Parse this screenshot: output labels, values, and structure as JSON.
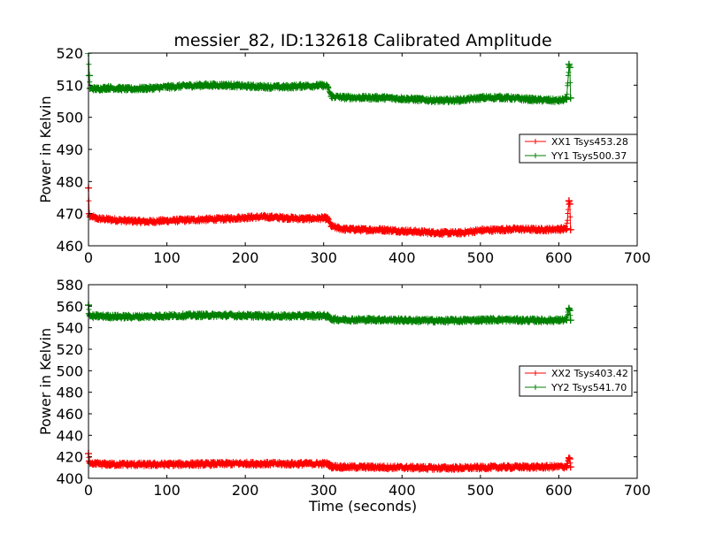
{
  "chart_data": [
    {
      "type": "line",
      "title": "messier_82, ID:132618 Calibrated Amplitude",
      "xlabel": "",
      "ylabel": "Power in Kelvin",
      "xlim": [
        0,
        700
      ],
      "ylim": [
        460,
        520
      ],
      "xticks": [
        0,
        100,
        200,
        300,
        400,
        500,
        600,
        700
      ],
      "yticks": [
        460,
        470,
        480,
        490,
        500,
        510,
        520
      ],
      "grid": false,
      "legend_position": "center-right",
      "series": [
        {
          "name": "XX1 Tsys453.28",
          "color": "#ff0000",
          "x": [
            0,
            1,
            2,
            5,
            10,
            25,
            50,
            75,
            100,
            125,
            150,
            175,
            200,
            225,
            250,
            275,
            300,
            305,
            310,
            325,
            350,
            375,
            400,
            425,
            450,
            475,
            500,
            525,
            550,
            575,
            600,
            610,
            613,
            614,
            615
          ],
          "y": [
            478,
            470,
            469,
            469,
            468.5,
            468.2,
            467.8,
            467.5,
            467.8,
            468,
            468.2,
            468.4,
            468.8,
            469,
            468.7,
            468.4,
            468.6,
            468.5,
            466,
            465.2,
            465,
            465,
            464.6,
            464.3,
            464,
            464,
            464.8,
            465,
            465.2,
            465,
            465.2,
            465.3,
            474,
            473,
            465
          ]
        },
        {
          "name": "YY1 Tsys500.37",
          "color": "#008000",
          "x": [
            0,
            1,
            2,
            5,
            10,
            25,
            50,
            75,
            100,
            125,
            150,
            175,
            200,
            225,
            250,
            275,
            300,
            305,
            310,
            325,
            350,
            375,
            400,
            425,
            450,
            475,
            500,
            525,
            550,
            575,
            600,
            610,
            613,
            614,
            615
          ],
          "y": [
            520,
            513,
            509,
            509,
            508.8,
            509.2,
            508.8,
            509,
            509.4,
            509.8,
            510,
            510,
            509.7,
            509.5,
            509.4,
            509.8,
            509.9,
            509.5,
            506.5,
            506.2,
            506.1,
            506.1,
            505.8,
            505.5,
            505.2,
            505.4,
            506,
            506.2,
            505.8,
            505.4,
            505.2,
            505.6,
            516.5,
            515.5,
            506
          ]
        }
      ]
    },
    {
      "type": "line",
      "title": "",
      "xlabel": "Time (seconds)",
      "ylabel": "Power in Kelvin",
      "xlim": [
        0,
        700
      ],
      "ylim": [
        400,
        580
      ],
      "xticks": [
        0,
        100,
        200,
        300,
        400,
        500,
        600,
        700
      ],
      "yticks": [
        400,
        420,
        440,
        460,
        480,
        500,
        520,
        540,
        560,
        580
      ],
      "grid": false,
      "legend_position": "center-right",
      "series": [
        {
          "name": "XX2 Tsys403.42",
          "color": "#ff0000",
          "x": [
            0,
            1,
            2,
            5,
            10,
            25,
            50,
            75,
            100,
            125,
            150,
            175,
            200,
            225,
            250,
            275,
            300,
            305,
            310,
            325,
            350,
            375,
            400,
            425,
            450,
            475,
            500,
            525,
            550,
            575,
            600,
            610,
            613,
            614,
            615
          ],
          "y": [
            423,
            416,
            414,
            413.5,
            413.3,
            413,
            413,
            412.8,
            413,
            413.2,
            413.3,
            413.5,
            413.7,
            413.6,
            413.4,
            413.5,
            413.6,
            413.5,
            411,
            410.5,
            410.4,
            410.3,
            410,
            409.8,
            409.5,
            409.6,
            410,
            410.3,
            410.5,
            410.5,
            410.8,
            410.8,
            419,
            418,
            410.5
          ]
        },
        {
          "name": "YY2 Tsys541.70",
          "color": "#008000",
          "x": [
            0,
            1,
            2,
            5,
            10,
            25,
            50,
            75,
            100,
            125,
            150,
            175,
            200,
            225,
            250,
            275,
            300,
            305,
            310,
            325,
            350,
            375,
            400,
            425,
            450,
            475,
            500,
            525,
            550,
            575,
            600,
            610,
            613,
            614,
            615
          ],
          "y": [
            561,
            553,
            551,
            550.5,
            550.8,
            550.5,
            550.2,
            550.5,
            551,
            551.4,
            551.6,
            551.5,
            551.2,
            551,
            550.7,
            551,
            551.2,
            550.5,
            548,
            547.5,
            547.4,
            547.4,
            547,
            546.7,
            546.5,
            546.7,
            547.2,
            547.4,
            547,
            546.8,
            547,
            547.2,
            558,
            556,
            547
          ]
        }
      ]
    }
  ]
}
